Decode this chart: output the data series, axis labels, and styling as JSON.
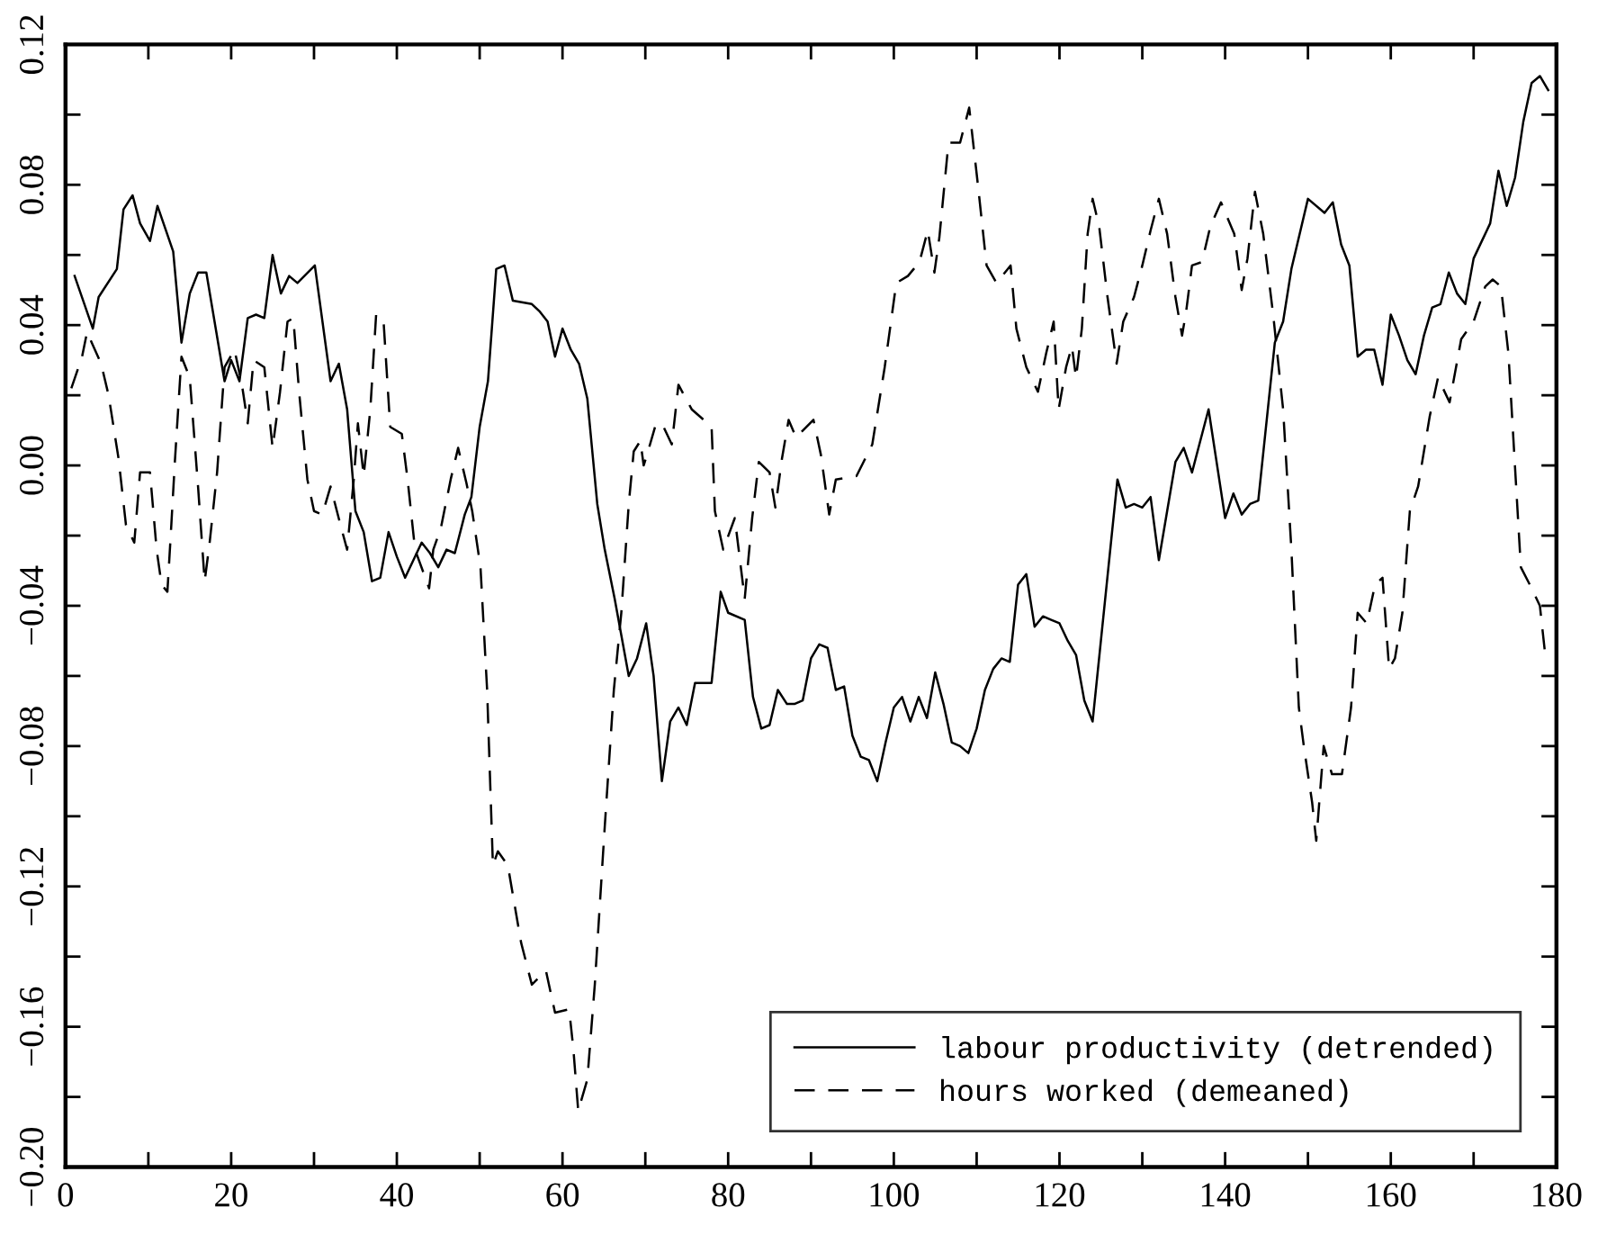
{
  "chart_data": {
    "type": "line",
    "xlim": [
      0,
      180
    ],
    "ylim": [
      -0.2,
      0.12
    ],
    "xticks": [
      0,
      {
        "value": 10,
        "label": null
      },
      20,
      {
        "value": 30,
        "label": null
      },
      40,
      {
        "value": 50,
        "label": null
      },
      60,
      {
        "value": 70,
        "label": null
      },
      80,
      {
        "value": 90,
        "label": null
      },
      100,
      {
        "value": 110,
        "label": null
      },
      120,
      {
        "value": 130,
        "label": null
      },
      140,
      {
        "value": 150,
        "label": null
      },
      160,
      {
        "value": 170,
        "label": null
      },
      180
    ],
    "yticks": [
      {
        "value": -0.2,
        "label": "−0.20"
      },
      {
        "value": -0.18,
        "label": null
      },
      {
        "value": -0.16,
        "label": "−0.16"
      },
      {
        "value": -0.14,
        "label": null
      },
      {
        "value": -0.12,
        "label": "−0.12"
      },
      {
        "value": -0.1,
        "label": null
      },
      {
        "value": -0.08,
        "label": "−0.08"
      },
      {
        "value": -0.06,
        "label": null
      },
      {
        "value": -0.04,
        "label": "−0.04"
      },
      {
        "value": -0.02,
        "label": null
      },
      {
        "value": 0,
        "label": "0.00"
      },
      {
        "value": 0.02,
        "label": null
      },
      {
        "value": 0.04,
        "label": "0.04"
      },
      {
        "value": 0.06,
        "label": null
      },
      {
        "value": 0.08,
        "label": "0.08"
      },
      {
        "value": 0.1,
        "label": null
      },
      {
        "value": 0.12,
        "label": "0.12"
      }
    ],
    "grid": false,
    "legend": "bottom right",
    "marker": "none",
    "series": [
      {
        "name": "labour productivity (detrended)",
        "color": "#000000",
        "line_style": "solid",
        "x": [
          1.1,
          3.3,
          4,
          6.2,
          7,
          8.1,
          9,
          10.2,
          11.1,
          13,
          14,
          15,
          16,
          17,
          19.2,
          20,
          21,
          22,
          23,
          24,
          25,
          26,
          27,
          28,
          30.1,
          32,
          33,
          34,
          35,
          36,
          37,
          38,
          39,
          40,
          41,
          42,
          43,
          44,
          45,
          46,
          47,
          48.2,
          49,
          50,
          51,
          52,
          53,
          54,
          56.3,
          57.2,
          58.2,
          59.1,
          60,
          61,
          62,
          63,
          64.2,
          65.1,
          66.3,
          68,
          69,
          70.1,
          71,
          72,
          73,
          74,
          75,
          76,
          78,
          79.1,
          80,
          82,
          83,
          84,
          85,
          86,
          87.1,
          88,
          89,
          90,
          91,
          92,
          93,
          94,
          95,
          96,
          97,
          98,
          99,
          100,
          101,
          102,
          103,
          104,
          105,
          106,
          107,
          108,
          109,
          110,
          111,
          112,
          113,
          114,
          115,
          116,
          117,
          118,
          119,
          120,
          121,
          122,
          123,
          124,
          127,
          128,
          129,
          130,
          131,
          132,
          133,
          134,
          135,
          136,
          138,
          140,
          141,
          142,
          143,
          144,
          146,
          147,
          148,
          150,
          152,
          153,
          154,
          155,
          156,
          157,
          158,
          159,
          160,
          161,
          162,
          163,
          164,
          165,
          166,
          167,
          168,
          169,
          170,
          171,
          172,
          173,
          174,
          175,
          176,
          177,
          178,
          179
        ],
        "values": [
          0.054,
          0.039,
          0.048,
          0.056,
          0.073,
          0.077,
          0.069,
          0.064,
          0.074,
          0.061,
          0.035,
          0.049,
          0.055,
          0.055,
          0.024,
          0.03,
          0.024,
          0.042,
          0.043,
          0.042,
          0.06,
          0.049,
          0.054,
          0.052,
          0.057,
          0.024,
          0.029,
          0.016,
          -0.013,
          -0.019,
          -0.033,
          -0.032,
          -0.019,
          -0.026,
          -0.032,
          -0.027,
          -0.022,
          -0.025,
          -0.029,
          -0.024,
          -0.025,
          -0.014,
          -0.009,
          0.011,
          0.024,
          0.056,
          0.057,
          0.047,
          0.046,
          0.044,
          0.041,
          0.031,
          0.039,
          0.033,
          0.029,
          0.019,
          -0.011,
          -0.024,
          -0.038,
          -0.06,
          -0.055,
          -0.045,
          -0.06,
          -0.09,
          -0.073,
          -0.069,
          -0.074,
          -0.062,
          -0.062,
          -0.036,
          -0.042,
          -0.044,
          -0.066,
          -0.075,
          -0.074,
          -0.064,
          -0.068,
          -0.068,
          -0.067,
          -0.055,
          -0.051,
          -0.052,
          -0.064,
          -0.063,
          -0.077,
          -0.083,
          -0.084,
          -0.09,
          -0.079,
          -0.069,
          -0.066,
          -0.073,
          -0.066,
          -0.072,
          -0.059,
          -0.068,
          -0.079,
          -0.08,
          -0.082,
          -0.075,
          -0.064,
          -0.058,
          -0.055,
          -0.056,
          -0.034,
          -0.031,
          -0.046,
          -0.043,
          -0.044,
          -0.045,
          -0.05,
          -0.054,
          -0.067,
          -0.073,
          -0.004,
          -0.012,
          -0.011,
          -0.012,
          -0.009,
          -0.027,
          -0.013,
          0.001,
          0.005,
          -0.002,
          0.016,
          -0.015,
          -0.008,
          -0.014,
          -0.011,
          -0.01,
          0.035,
          0.041,
          0.056,
          0.076,
          0.072,
          0.075,
          0.063,
          0.057,
          0.031,
          0.033,
          0.033,
          0.023,
          0.043,
          0.037,
          0.03,
          0.026,
          0.037,
          0.045,
          0.046,
          0.055,
          0.049,
          0.046,
          0.059,
          0.064,
          0.069,
          0.084,
          0.074,
          0.082,
          0.098,
          0.109,
          0.111,
          0.107
        ]
      },
      {
        "name": "hours worked (demeaned)",
        "color": "#000000",
        "line_style": "dashed",
        "x": [
          0.7,
          2,
          2.6,
          4.3,
          5.2,
          6.4,
          7.3,
          8.3,
          9,
          10.2,
          11,
          11.6,
          12.3,
          12.7,
          13.2,
          14,
          15,
          16,
          16.8,
          17.4,
          18.3,
          19.2,
          20.4,
          21.3,
          22,
          22.7,
          24,
          25,
          25.9,
          26.8,
          27.5,
          28.2,
          29.2,
          30,
          31,
          32,
          33.2,
          34,
          34.8,
          35.3,
          36,
          36.8,
          37.5,
          38.4,
          39.2,
          40.6,
          41.3,
          42.2,
          43.9,
          44.4,
          45.3,
          46.5,
          47.4,
          48.4,
          49.1,
          50.1,
          50.9,
          51.6,
          52.2,
          53.4,
          55,
          56.3,
          58,
          59.1,
          60.8,
          61.3,
          61.9,
          63,
          63.9,
          65.1,
          66.2,
          67.1,
          68,
          68.6,
          69.4,
          69.8,
          70.2,
          71.3,
          72.2,
          73.2,
          74,
          75.6,
          78,
          78.4,
          79.4,
          80.8,
          82,
          82.9,
          83.7,
          85,
          85.7,
          86.5,
          87.3,
          88.2,
          90.3,
          91.2,
          92.2,
          93,
          95.5,
          97.4,
          98.9,
          100.3,
          101.7,
          103.1,
          104.1,
          104.9,
          105.5,
          106.6,
          108,
          109.1,
          110.2,
          111.2,
          112.4,
          114.1,
          114.8,
          116,
          117.4,
          118.4,
          119.3,
          119.9,
          120.8,
          121.5,
          122,
          122.7,
          123.4,
          124,
          124.8,
          125.8,
          126.9,
          127.7,
          129,
          130,
          131,
          132,
          133,
          134,
          134.8,
          135.3,
          136,
          137.2,
          138.2,
          139.5,
          141.1,
          142,
          142.7,
          143.6,
          144.6,
          145.8,
          147,
          148,
          148.9,
          149.5,
          150.5,
          151,
          151.9,
          152.9,
          154.1,
          155.2,
          156,
          157.1,
          158.1,
          159,
          159.8,
          160.5,
          161.4,
          162.3,
          163.3,
          164.7,
          165.7,
          167.1,
          168.5,
          170,
          171.4,
          172.3,
          173.3,
          174.2,
          175.7,
          177,
          178,
          178.6
        ],
        "values": [
          0.022,
          0.031,
          0.038,
          0.029,
          0.02,
          0.002,
          -0.017,
          -0.022,
          -0.002,
          -0.002,
          -0.024,
          -0.034,
          -0.036,
          -0.02,
          0.001,
          0.031,
          0.025,
          -0.006,
          -0.033,
          -0.022,
          -0.002,
          0.028,
          0.033,
          0.023,
          0.012,
          0.03,
          0.028,
          0.005,
          0.021,
          0.041,
          0.042,
          0.021,
          -0.004,
          -0.013,
          -0.014,
          -0.006,
          -0.017,
          -0.024,
          -0.004,
          0.012,
          -0.003,
          0.016,
          0.043,
          0.041,
          0.011,
          0.009,
          -0.004,
          -0.024,
          -0.035,
          -0.024,
          -0.018,
          -0.004,
          0.005,
          -0.005,
          -0.013,
          -0.029,
          -0.064,
          -0.114,
          -0.11,
          -0.114,
          -0.136,
          -0.148,
          -0.144,
          -0.156,
          -0.155,
          -0.166,
          -0.184,
          -0.175,
          -0.148,
          -0.103,
          -0.064,
          -0.042,
          -0.011,
          0.004,
          0.007,
          0.0,
          0.003,
          0.012,
          0.011,
          0.006,
          0.023,
          0.016,
          0.011,
          -0.013,
          -0.024,
          -0.015,
          -0.038,
          -0.015,
          0.001,
          -0.002,
          -0.012,
          0.002,
          0.013,
          0.008,
          0.013,
          0.003,
          -0.014,
          -0.004,
          -0.003,
          0.006,
          0.028,
          0.052,
          0.054,
          0.058,
          0.067,
          0.055,
          0.065,
          0.092,
          0.092,
          0.102,
          0.079,
          0.057,
          0.052,
          0.057,
          0.039,
          0.028,
          0.021,
          0.032,
          0.041,
          0.016,
          0.028,
          0.034,
          0.025,
          0.039,
          0.066,
          0.076,
          0.068,
          0.048,
          0.029,
          0.041,
          0.048,
          0.057,
          0.067,
          0.076,
          0.066,
          0.048,
          0.037,
          0.044,
          0.057,
          0.058,
          0.068,
          0.075,
          0.066,
          0.05,
          0.059,
          0.078,
          0.066,
          0.043,
          0.016,
          -0.024,
          -0.069,
          -0.08,
          -0.096,
          -0.107,
          -0.08,
          -0.088,
          -0.088,
          -0.069,
          -0.042,
          -0.045,
          -0.034,
          -0.032,
          -0.058,
          -0.055,
          -0.042,
          -0.013,
          -0.006,
          0.014,
          0.025,
          0.018,
          0.036,
          0.041,
          0.051,
          0.053,
          0.051,
          0.032,
          -0.029,
          -0.035,
          -0.04,
          -0.053
        ]
      }
    ]
  }
}
